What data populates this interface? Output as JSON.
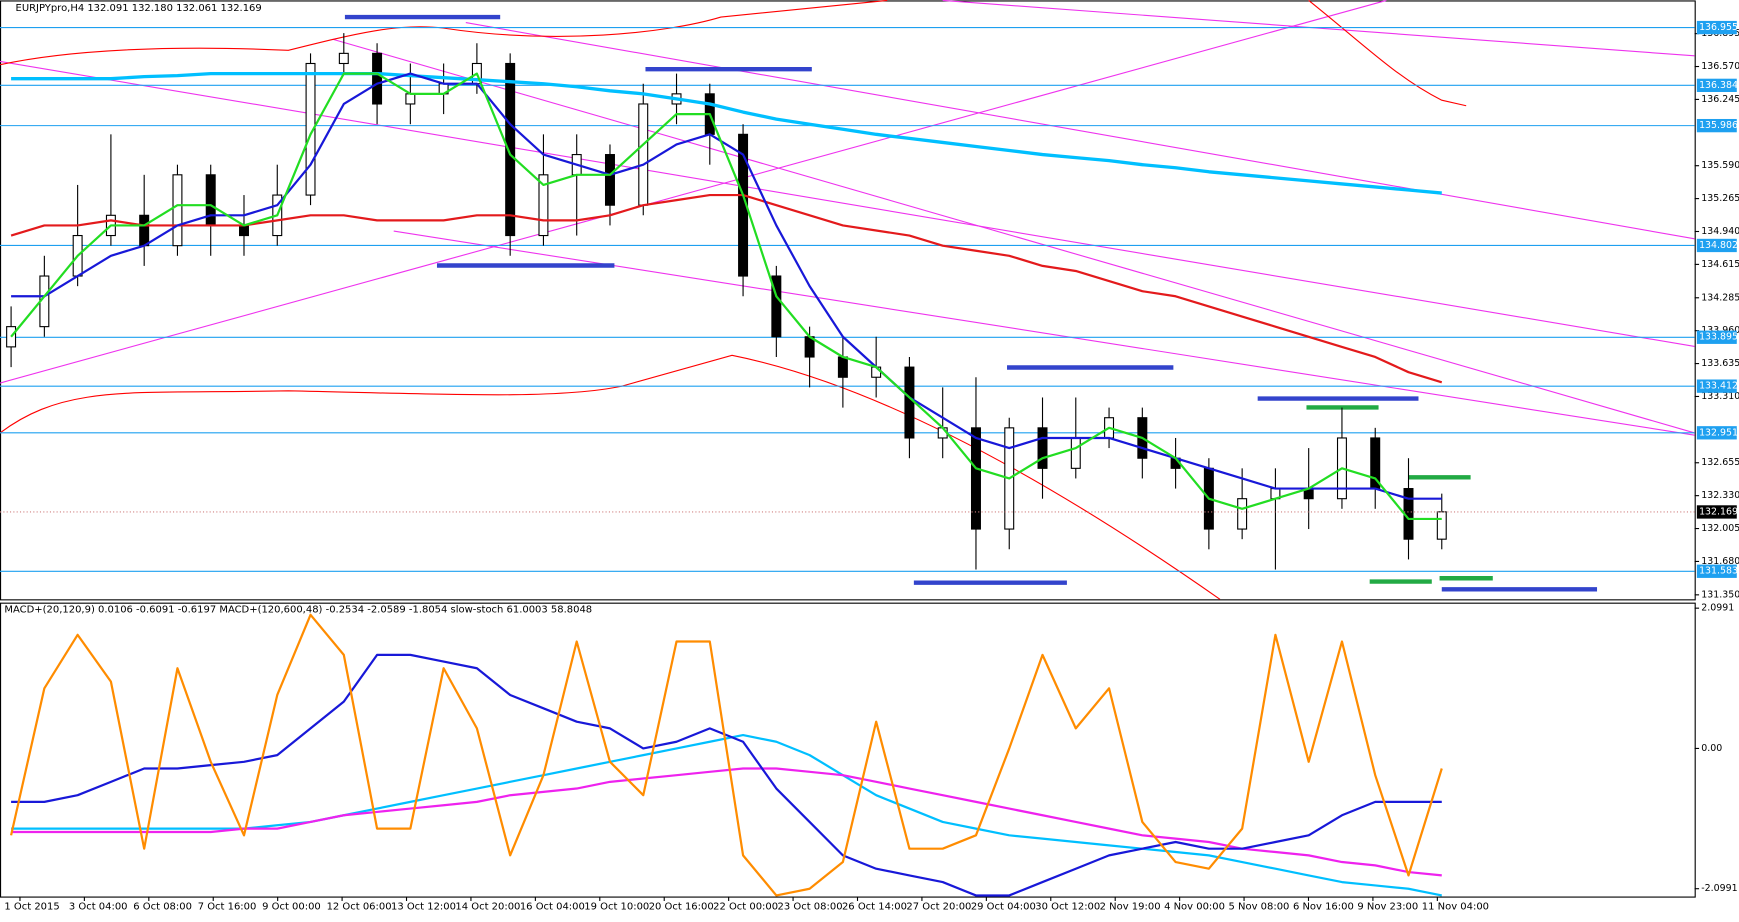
{
  "chart_data": [
    {
      "type": "candlestick",
      "title": "EURJPYpro,H4  132.091 132.180 132.061 132.169",
      "x_labels": [
        "1 Oct 2015",
        "3 Oct 04:00",
        "6 Oct 08:00",
        "7 Oct 16:00",
        "9 Oct 00:00",
        "12 Oct 06:00",
        "13 Oct 12:00",
        "14 Oct 20:00",
        "16 Oct 04:00",
        "19 Oct 10:00",
        "20 Oct 16:00",
        "22 Oct 00:00",
        "23 Oct 08:00",
        "26 Oct 14:00",
        "27 Oct 20:00",
        "29 Oct 04:00",
        "30 Oct 12:00",
        "2 Nov 19:00",
        "4 Nov 00:00",
        "5 Nov 08:00",
        "6 Nov 16:00",
        "9 Nov 23:00",
        "11 Nov 04:00"
      ],
      "open": [
        133.8,
        134.0,
        134.5,
        134.9,
        135.1,
        134.8,
        135.5,
        135.0,
        134.9,
        135.3,
        136.6,
        136.7,
        136.2,
        136.3,
        136.4,
        136.6,
        134.9,
        135.5,
        135.7,
        135.2,
        136.2,
        136.3,
        135.9,
        134.5,
        133.9,
        133.7,
        133.5,
        133.6,
        132.9,
        133.0,
        132.0,
        133.0,
        132.6,
        132.9,
        133.1,
        132.7,
        132.6,
        132.0,
        132.3,
        132.4,
        132.3,
        132.9,
        132.4,
        131.9
      ],
      "high": [
        134.2,
        134.7,
        135.4,
        135.9,
        135.5,
        135.6,
        135.6,
        135.3,
        135.6,
        136.7,
        136.9,
        136.8,
        136.6,
        136.6,
        136.8,
        136.7,
        135.9,
        135.9,
        135.8,
        136.4,
        136.5,
        136.4,
        136.0,
        134.6,
        134.0,
        133.9,
        133.9,
        133.7,
        133.4,
        133.5,
        133.1,
        133.3,
        133.3,
        133.2,
        133.2,
        132.9,
        132.7,
        132.6,
        132.6,
        132.8,
        133.2,
        133.0,
        132.7,
        132.35
      ],
      "low": [
        133.6,
        133.9,
        134.4,
        134.8,
        134.6,
        134.7,
        134.7,
        134.7,
        134.8,
        135.2,
        136.5,
        136.0,
        136.0,
        136.1,
        136.3,
        134.7,
        134.8,
        134.9,
        135.0,
        135.1,
        136.0,
        135.6,
        134.3,
        133.7,
        133.4,
        133.2,
        133.3,
        132.7,
        132.7,
        131.6,
        131.8,
        132.3,
        132.5,
        132.8,
        132.5,
        132.4,
        131.8,
        131.9,
        131.6,
        132.0,
        132.2,
        132.2,
        131.7,
        131.8
      ],
      "close": [
        134.0,
        134.5,
        134.9,
        135.1,
        134.8,
        135.5,
        135.0,
        134.9,
        135.3,
        136.6,
        136.7,
        136.2,
        136.3,
        136.4,
        136.6,
        134.9,
        135.5,
        135.7,
        135.2,
        136.2,
        136.3,
        135.9,
        134.5,
        133.9,
        133.7,
        133.5,
        133.6,
        132.9,
        133.0,
        132.0,
        133.0,
        132.6,
        132.9,
        133.1,
        132.7,
        132.6,
        132.0,
        132.3,
        132.4,
        132.3,
        132.9,
        132.4,
        131.9,
        132.17
      ],
      "series": [
        {
          "color": "#00bfff",
          "values": [
            136.45,
            136.45,
            136.45,
            136.45,
            136.47,
            136.48,
            136.5,
            136.5,
            136.5,
            136.5,
            136.5,
            136.5,
            136.48,
            136.46,
            136.44,
            136.42,
            136.4,
            136.37,
            136.33,
            136.3,
            136.25,
            136.2,
            136.12,
            136.05,
            136.0,
            135.95,
            135.9,
            135.86,
            135.82,
            135.78,
            135.74,
            135.7,
            135.67,
            135.64,
            135.6,
            135.57,
            135.53,
            135.5,
            135.47,
            135.44,
            135.41,
            135.38,
            135.35,
            135.32
          ]
        },
        {
          "color": "#e31a1c",
          "values": [
            134.9,
            135.0,
            135.0,
            135.05,
            135.0,
            135.0,
            135.0,
            135.0,
            135.05,
            135.1,
            135.1,
            135.05,
            135.05,
            135.05,
            135.1,
            135.1,
            135.05,
            135.05,
            135.1,
            135.2,
            135.25,
            135.3,
            135.3,
            135.2,
            135.1,
            135.0,
            134.95,
            134.9,
            134.8,
            134.75,
            134.7,
            134.6,
            134.55,
            134.45,
            134.35,
            134.3,
            134.2,
            134.1,
            134.0,
            133.9,
            133.8,
            133.7,
            133.55,
            133.45
          ]
        },
        {
          "color": "#1818d8",
          "values": [
            134.3,
            134.3,
            134.5,
            134.7,
            134.8,
            135.0,
            135.1,
            135.1,
            135.2,
            135.6,
            136.2,
            136.4,
            136.5,
            136.4,
            136.4,
            136.0,
            135.7,
            135.6,
            135.5,
            135.6,
            135.8,
            135.9,
            135.7,
            135.0,
            134.4,
            133.9,
            133.6,
            133.3,
            133.1,
            132.9,
            132.8,
            132.9,
            132.9,
            132.9,
            132.8,
            132.7,
            132.6,
            132.5,
            132.4,
            132.4,
            132.4,
            132.4,
            132.3,
            132.3
          ]
        },
        {
          "color": "#22dd22",
          "values": [
            133.9,
            134.3,
            134.7,
            135.0,
            135.0,
            135.2,
            135.2,
            135.0,
            135.1,
            135.9,
            136.5,
            136.5,
            136.3,
            136.3,
            136.5,
            135.7,
            135.4,
            135.5,
            135.5,
            135.8,
            136.1,
            136.1,
            135.3,
            134.3,
            133.9,
            133.7,
            133.6,
            133.3,
            133.0,
            132.6,
            132.5,
            132.7,
            132.8,
            133.0,
            132.9,
            132.7,
            132.3,
            132.2,
            132.3,
            132.4,
            132.6,
            132.5,
            132.1,
            132.1
          ]
        }
      ],
      "price_levels": [
        136.955,
        136.384,
        135.986,
        134.802,
        133.895,
        133.412,
        132.951,
        131.583
      ],
      "level_color": "#1ea0f0",
      "last_price": 132.169,
      "ylim": [
        131.306,
        137.037
      ],
      "yticks": [
        136.895,
        {
          "value": 136.57,
          "label": "136.570"
        },
        136.245,
        {
          "value": 135.59,
          "label": "135.590"
        },
        135.265,
        {
          "value": 134.94,
          "label": "134.940"
        },
        134.615,
        134.285,
        {
          "value": 133.96,
          "label": "133.960"
        },
        133.635,
        {
          "value": 133.31,
          "label": "133.310"
        },
        132.655,
        {
          "value": 132.33,
          "label": "132.330"
        },
        132.005,
        {
          "value": 131.68,
          "label": "131.680"
        },
        {
          "value": 131.35,
          "label": "131.350"
        }
      ]
    },
    {
      "type": "line",
      "title": "MACD+(20,120,9) 0.0106 -0.6091 -0.6197  MACD+(120,600,48) -0.2534 -2.0589 -1.8054  slow-stoch 61.0003 58.8048",
      "series": [
        {
          "color": "#00bfff",
          "values": [
            -1.2,
            -1.2,
            -1.2,
            -1.2,
            -1.2,
            -1.2,
            -1.2,
            -1.2,
            -1.15,
            -1.1,
            -1.0,
            -0.9,
            -0.8,
            -0.7,
            -0.6,
            -0.5,
            -0.4,
            -0.3,
            -0.2,
            -0.1,
            0.0,
            0.1,
            0.2,
            0.1,
            -0.1,
            -0.4,
            -0.7,
            -0.9,
            -1.1,
            -1.2,
            -1.3,
            -1.35,
            -1.4,
            -1.45,
            -1.5,
            -1.55,
            -1.6,
            -1.7,
            -1.8,
            -1.9,
            -2.0,
            -2.05,
            -2.1,
            -2.2
          ]
        },
        {
          "color": "#ee22ee",
          "values": [
            -1.25,
            -1.25,
            -1.25,
            -1.25,
            -1.25,
            -1.25,
            -1.25,
            -1.2,
            -1.2,
            -1.1,
            -1.0,
            -0.95,
            -0.9,
            -0.85,
            -0.8,
            -0.7,
            -0.65,
            -0.6,
            -0.5,
            -0.45,
            -0.4,
            -0.35,
            -0.3,
            -0.3,
            -0.35,
            -0.4,
            -0.5,
            -0.6,
            -0.7,
            -0.8,
            -0.9,
            -1.0,
            -1.1,
            -1.2,
            -1.3,
            -1.35,
            -1.4,
            -1.5,
            -1.55,
            -1.6,
            -1.7,
            -1.75,
            -1.85,
            -1.9
          ]
        },
        {
          "color": "#1818d8",
          "values": [
            -0.8,
            -0.8,
            -0.7,
            -0.5,
            -0.3,
            -0.3,
            -0.25,
            -0.2,
            -0.1,
            0.3,
            0.7,
            1.4,
            1.4,
            1.3,
            1.2,
            0.8,
            0.6,
            0.4,
            0.3,
            0.0,
            0.1,
            0.3,
            0.1,
            -0.6,
            -1.1,
            -1.6,
            -1.8,
            -1.9,
            -2.0,
            -2.2,
            -2.2,
            -2.0,
            -1.8,
            -1.6,
            -1.5,
            -1.4,
            -1.5,
            -1.5,
            -1.4,
            -1.3,
            -1.0,
            -0.8,
            -0.8,
            -0.8
          ]
        },
        {
          "color": "#ff8c00",
          "values": [
            -1.3,
            0.9,
            1.7,
            1.0,
            -1.5,
            1.2,
            -0.2,
            -1.3,
            0.8,
            2.0,
            1.4,
            -1.2,
            -1.2,
            1.2,
            0.3,
            -1.6,
            -0.4,
            1.6,
            -0.2,
            -0.7,
            1.6,
            1.6,
            -1.6,
            -2.2,
            -2.1,
            -1.7,
            0.4,
            -1.5,
            -1.5,
            -1.3,
            0.0,
            1.4,
            0.3,
            0.9,
            -1.1,
            -1.7,
            -1.8,
            -1.2,
            1.7,
            -0.2,
            1.6,
            -0.4,
            -1.9,
            -0.3
          ]
        }
      ],
      "ylim": [
        -2.216,
        2.182
      ],
      "yticks": [
        2.0991,
        {
          "value": 0,
          "label": "0.00"
        },
        -2.0991
      ]
    }
  ]
}
